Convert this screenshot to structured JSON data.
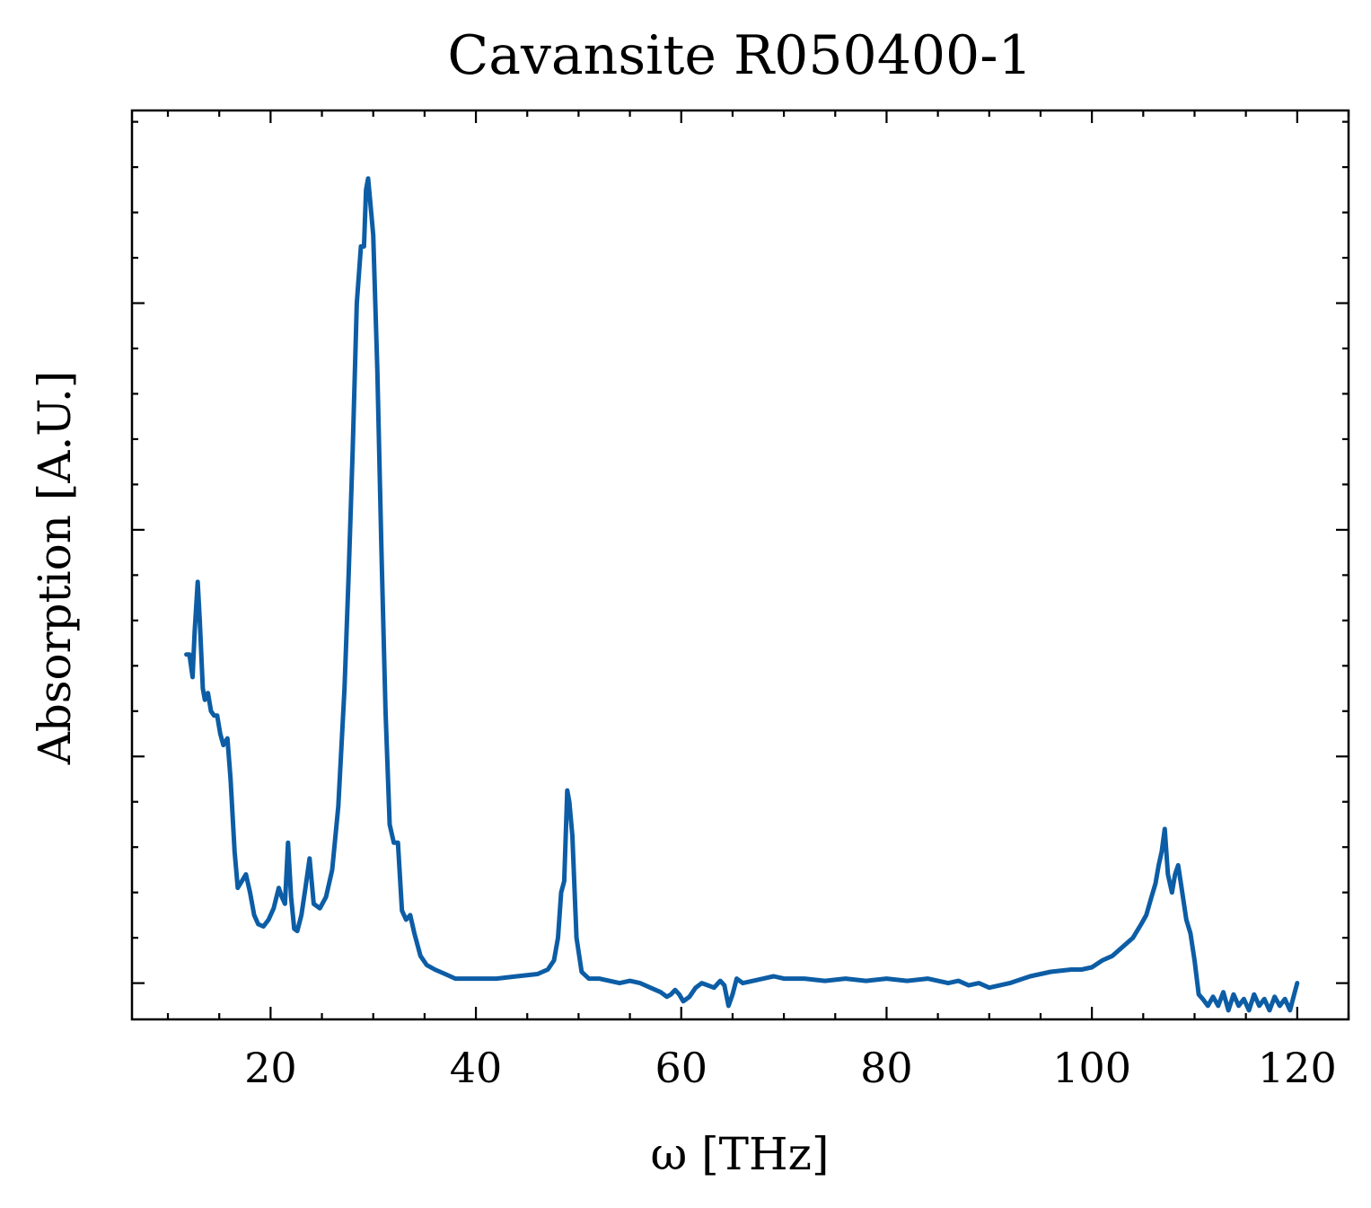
{
  "chart_data": {
    "type": "line",
    "title": "Cavansite R050400-1",
    "xlabel": "ω [THz]",
    "ylabel": "Absorption [A.U.]",
    "xlim": [
      6.5,
      125
    ],
    "ylim": [
      -0.16,
      3.85
    ],
    "x_major_ticks": [
      20,
      40,
      60,
      80,
      100,
      120
    ],
    "x_tick_labels": [
      "20",
      "40",
      "60",
      "80",
      "100",
      "120"
    ],
    "y_major_ticks": [
      0,
      1,
      2,
      3
    ],
    "y_tick_labels_shown": false,
    "line_color": "#0c5da5",
    "grid": false,
    "legend": "none",
    "series": [
      {
        "x": [
          11.8,
          12.1,
          12.4,
          12.6,
          12.9,
          13.1,
          13.4,
          13.6,
          13.9,
          14.2,
          14.5,
          14.8,
          15.1,
          15.4,
          15.8,
          16.1,
          16.5,
          16.8,
          17.2,
          17.6,
          18.0,
          18.4,
          18.8,
          19.3,
          19.8,
          20.3,
          20.8,
          21.1,
          21.4,
          21.7,
          22.0,
          22.3,
          22.6,
          23.0,
          23.4,
          23.8,
          24.2,
          24.8,
          25.4,
          26.0,
          26.6,
          27.2,
          27.6,
          28.0,
          28.4,
          28.8,
          29.1,
          29.3,
          29.5,
          29.7,
          30.0,
          30.4,
          30.8,
          31.2,
          31.6,
          32.0,
          32.4,
          32.8,
          33.2,
          33.6,
          34.0,
          34.6,
          35.2,
          36.0,
          37.0,
          38.0,
          40.0,
          42.0,
          44.0,
          46.0,
          47.0,
          47.6,
          48.0,
          48.3,
          48.6,
          48.9,
          49.1,
          49.4,
          49.8,
          50.3,
          51.0,
          52.0,
          53.0,
          54.0,
          55.0,
          56.0,
          57.0,
          58.0,
          58.6,
          59.0,
          59.4,
          59.8,
          60.2,
          60.8,
          61.4,
          62.0,
          62.6,
          63.2,
          63.8,
          64.2,
          64.6,
          65.0,
          65.4,
          66.0,
          67.0,
          68.0,
          69.0,
          70.0,
          72.0,
          74.0,
          76.0,
          78.0,
          80.0,
          82.0,
          84.0,
          86.0,
          87.0,
          88.0,
          89.0,
          90.0,
          92.0,
          94.0,
          96.0,
          98.0,
          99.0,
          100.0,
          101.0,
          102.0,
          103.0,
          104.0,
          104.8,
          105.3,
          105.8,
          106.2,
          106.5,
          106.8,
          107.1,
          107.4,
          107.8,
          108.1,
          108.4,
          108.8,
          109.2,
          109.6,
          110.0,
          110.4,
          110.8,
          111.3,
          111.8,
          112.3,
          112.8,
          113.3,
          113.8,
          114.3,
          114.8,
          115.3,
          115.8,
          116.3,
          116.8,
          117.3,
          117.8,
          118.3,
          118.8,
          119.3,
          119.7,
          120.0
        ],
        "y": [
          1.45,
          1.45,
          1.35,
          1.55,
          1.77,
          1.6,
          1.3,
          1.25,
          1.28,
          1.2,
          1.18,
          1.18,
          1.1,
          1.05,
          1.08,
          0.9,
          0.58,
          0.42,
          0.45,
          0.48,
          0.4,
          0.3,
          0.26,
          0.25,
          0.28,
          0.33,
          0.42,
          0.38,
          0.35,
          0.62,
          0.38,
          0.24,
          0.23,
          0.3,
          0.42,
          0.55,
          0.35,
          0.33,
          0.38,
          0.5,
          0.78,
          1.3,
          1.8,
          2.35,
          3.0,
          3.25,
          3.25,
          3.5,
          3.55,
          3.45,
          3.3,
          2.7,
          1.9,
          1.2,
          0.7,
          0.62,
          0.62,
          0.32,
          0.28,
          0.3,
          0.22,
          0.12,
          0.08,
          0.06,
          0.04,
          0.02,
          0.02,
          0.02,
          0.03,
          0.04,
          0.06,
          0.1,
          0.2,
          0.4,
          0.45,
          0.85,
          0.8,
          0.65,
          0.2,
          0.05,
          0.02,
          0.02,
          0.01,
          0.0,
          0.01,
          0.0,
          -0.02,
          -0.04,
          -0.06,
          -0.05,
          -0.03,
          -0.05,
          -0.08,
          -0.06,
          -0.02,
          0.0,
          -0.01,
          -0.02,
          0.01,
          -0.01,
          -0.1,
          -0.05,
          0.02,
          0.0,
          0.01,
          0.02,
          0.03,
          0.02,
          0.02,
          0.01,
          0.02,
          0.01,
          0.02,
          0.01,
          0.02,
          0.0,
          0.01,
          -0.01,
          0.0,
          -0.02,
          0.0,
          0.03,
          0.05,
          0.06,
          0.06,
          0.07,
          0.1,
          0.12,
          0.16,
          0.2,
          0.26,
          0.3,
          0.38,
          0.44,
          0.52,
          0.58,
          0.68,
          0.48,
          0.4,
          0.48,
          0.52,
          0.4,
          0.28,
          0.22,
          0.1,
          -0.05,
          -0.07,
          -0.1,
          -0.06,
          -0.1,
          -0.04,
          -0.12,
          -0.05,
          -0.1,
          -0.07,
          -0.12,
          -0.05,
          -0.1,
          -0.07,
          -0.12,
          -0.06,
          -0.1,
          -0.07,
          -0.12,
          -0.05,
          0.0
        ]
      }
    ]
  }
}
